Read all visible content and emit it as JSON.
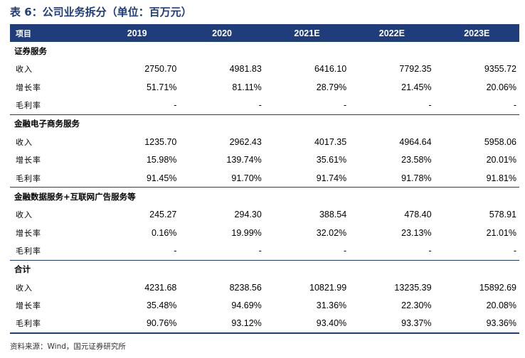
{
  "title": "表 6：公司业务拆分（单位：百万元）",
  "header": [
    "项目",
    "2019",
    "2020",
    "2021E",
    "2022E",
    "2023E"
  ],
  "sections": [
    {
      "name": "证券服务",
      "rows": [
        {
          "label": "收入",
          "values": [
            "2750.70",
            "4981.83",
            "6416.10",
            "7792.35",
            "9355.72"
          ]
        },
        {
          "label": "增长率",
          "values": [
            "51.71%",
            "81.11%",
            "28.79%",
            "21.45%",
            "20.06%"
          ]
        },
        {
          "label": "毛利率",
          "values": [
            "-",
            "-",
            "-",
            "-",
            "-"
          ]
        }
      ]
    },
    {
      "name": "金融电子商务服务",
      "rows": [
        {
          "label": "收入",
          "values": [
            "1235.70",
            "2962.43",
            "4017.35",
            "4964.64",
            "5958.06"
          ]
        },
        {
          "label": "增长率",
          "values": [
            "15.98%",
            "139.74%",
            "35.61%",
            "23.58%",
            "20.01%"
          ]
        },
        {
          "label": "毛利率",
          "values": [
            "91.45%",
            "91.70%",
            "91.74%",
            "91.78%",
            "91.81%"
          ]
        }
      ]
    },
    {
      "name": "金融数据服务+互联网广告服务等",
      "rows": [
        {
          "label": "收入",
          "values": [
            "245.27",
            "294.30",
            "388.54",
            "478.40",
            "578.91"
          ]
        },
        {
          "label": "增长率",
          "values": [
            "0.16%",
            "19.99%",
            "32.02%",
            "23.13%",
            "21.01%"
          ]
        },
        {
          "label": "毛利率",
          "values": [
            "-",
            "-",
            "-",
            "-",
            "-"
          ]
        }
      ]
    },
    {
      "name": "合计",
      "rows": [
        {
          "label": "收入",
          "values": [
            "4231.68",
            "8238.56",
            "10821.99",
            "13235.39",
            "15892.69"
          ]
        },
        {
          "label": "增长率",
          "values": [
            "35.48%",
            "94.69%",
            "31.36%",
            "22.30%",
            "20.08%"
          ]
        },
        {
          "label": "毛利率",
          "values": [
            "90.76%",
            "93.12%",
            "93.40%",
            "93.37%",
            "93.36%"
          ]
        }
      ]
    }
  ],
  "source": "资料来源：Wind，国元证券研究所",
  "colors": {
    "accent": "#1f3d7a"
  }
}
